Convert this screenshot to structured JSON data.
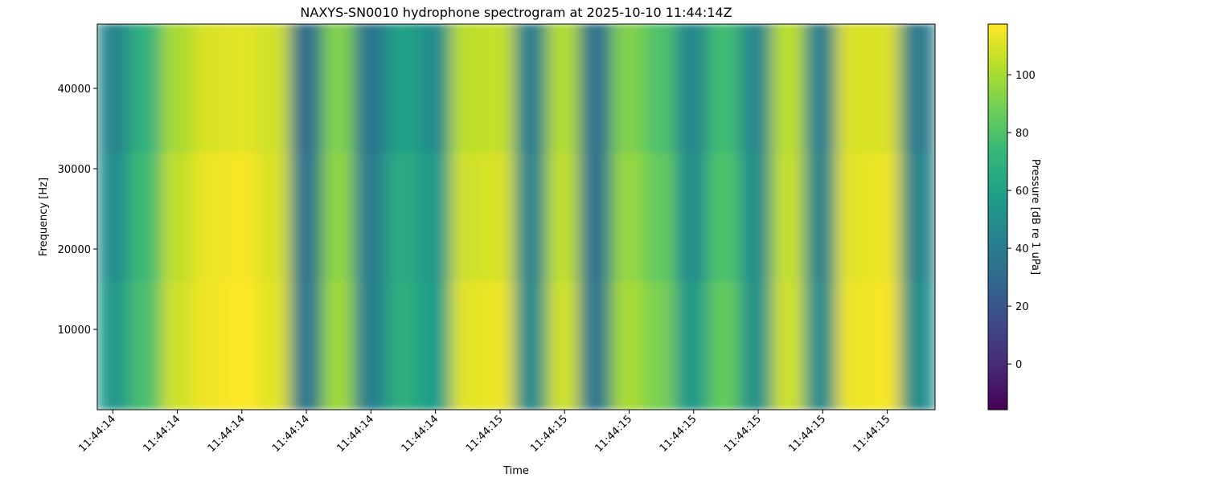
{
  "chart_data": {
    "type": "heatmap",
    "title": "NAXYS-SN0010 hydrophone spectrogram at 2025-10-10 11:44:14Z",
    "x_label": "Time",
    "y_label": "Frequency [Hz]",
    "colorbar_label": "Pressure [dB re 1 uPa]",
    "colormap": "viridis",
    "xbins": [
      14.426,
      14.476,
      14.526,
      14.575,
      14.625,
      14.675,
      14.725,
      14.775,
      14.824,
      14.874,
      14.924,
      14.974,
      15.024,
      15.073,
      15.123,
      15.173,
      15.223,
      15.273,
      15.322,
      15.372,
      15.422,
      15.472,
      15.522,
      15.571,
      15.621,
      15.671,
      15.724
    ],
    "ybins": [
      0,
      16000,
      32000,
      48000
    ],
    "values": [
      [
        55,
        78,
        108,
        115,
        118,
        112,
        38,
        98,
        42,
        68,
        58,
        112,
        114,
        48,
        108,
        38,
        100,
        90,
        55,
        85,
        52,
        108,
        48,
        114,
        116,
        50
      ],
      [
        50,
        75,
        105,
        114,
        116,
        110,
        36,
        95,
        40,
        66,
        55,
        108,
        110,
        45,
        105,
        36,
        96,
        85,
        50,
        80,
        50,
        106,
        45,
        112,
        114,
        45
      ],
      [
        45,
        70,
        100,
        110,
        112,
        108,
        32,
        92,
        36,
        60,
        50,
        104,
        106,
        42,
        102,
        34,
        92,
        80,
        46,
        76,
        46,
        104,
        42,
        110,
        110,
        40
      ]
    ],
    "xlim": [
      14.426,
      15.724
    ],
    "xticks": [
      {
        "value": 14.45,
        "label": "11:44:14"
      },
      {
        "value": 14.55,
        "label": "11:44:14"
      },
      {
        "value": 14.65,
        "label": "11:44:14"
      },
      {
        "value": 14.75,
        "label": "11:44:14"
      },
      {
        "value": 14.85,
        "label": "11:44:14"
      },
      {
        "value": 14.95,
        "label": "11:44:14"
      },
      {
        "value": 15.05,
        "label": "11:44:15"
      },
      {
        "value": 15.15,
        "label": "11:44:15"
      },
      {
        "value": 15.25,
        "label": "11:44:15"
      },
      {
        "value": 15.35,
        "label": "11:44:15"
      },
      {
        "value": 15.45,
        "label": "11:44:15"
      },
      {
        "value": 15.55,
        "label": "11:44:15"
      },
      {
        "value": 15.65,
        "label": "11:44:15"
      }
    ],
    "ylim": [
      0,
      48000
    ],
    "yticks": [
      10000,
      20000,
      30000,
      40000
    ],
    "clim": [
      -15.8,
      117.5
    ],
    "cticks": [
      0,
      20,
      40,
      60,
      80,
      100
    ]
  }
}
